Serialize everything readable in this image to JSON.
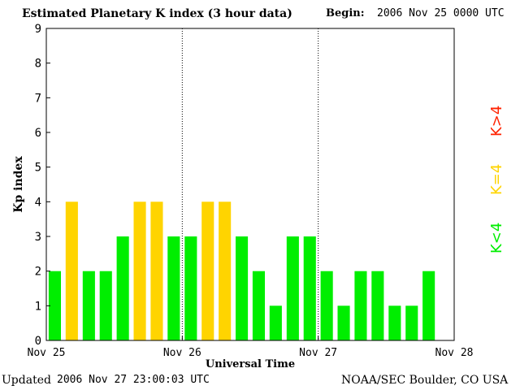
{
  "header": {
    "title": "Estimated Planetary K index (3 hour data)",
    "begin_label": "Begin:",
    "begin_value": "2006 Nov 25 0000 UTC"
  },
  "footer": {
    "updated_label": "Updated",
    "updated_value": "2006 Nov 27 23:00:03 UTC",
    "organization": "NOAA/SEC Boulder, CO USA"
  },
  "legend": {
    "low": "K<4",
    "equal": "K=4",
    "high": "K>4"
  },
  "colors": {
    "low": "#00ee00",
    "equal": "#ffd400",
    "high": "#ff2200"
  },
  "chart_data": {
    "type": "bar",
    "title": "Estimated Planetary K index (3 hour data)",
    "xlabel": "Universal Time",
    "ylabel": "Kp index",
    "ylim": [
      0,
      9
    ],
    "yticks": [
      0,
      1,
      2,
      3,
      4,
      5,
      6,
      7,
      8,
      9
    ],
    "day_labels": [
      "Nov 25",
      "Nov 26",
      "Nov 27",
      "Nov 28"
    ],
    "interval_hours": 3,
    "values": [
      2,
      4,
      2,
      2,
      3,
      4,
      4,
      3,
      3,
      4,
      4,
      3,
      2,
      1,
      3,
      3,
      2,
      1,
      2,
      2,
      1,
      1,
      2
    ],
    "grid": false,
    "legend_position": "right"
  }
}
